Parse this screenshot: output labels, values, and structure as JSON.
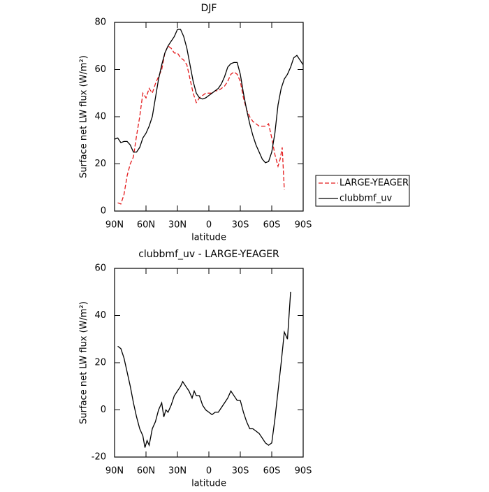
{
  "chart_data": [
    {
      "type": "line",
      "title": "DJF",
      "x_label": "latitude",
      "y_label": "Surface net LW flux (W/m²)",
      "xlim": [
        90,
        -90
      ],
      "ylim": [
        0,
        80
      ],
      "xticks": [
        {
          "value": 90,
          "label": "90N"
        },
        {
          "value": 60,
          "label": "60N"
        },
        {
          "value": 30,
          "label": "30N"
        },
        0,
        {
          "value": -30,
          "label": "30S"
        },
        {
          "value": -60,
          "label": "60S"
        },
        {
          "value": -90,
          "label": "90S"
        }
      ],
      "yticks": [
        0,
        20,
        40,
        60,
        80
      ],
      "legend": "right",
      "series": [
        {
          "name": "LARGE-YEAGER",
          "color": "#e41a1c",
          "style": "dashed",
          "x": [
            87,
            84,
            81,
            78,
            75,
            72,
            69,
            66,
            63,
            60,
            57,
            54,
            51,
            48,
            45,
            42,
            39,
            36,
            33,
            30,
            27,
            24,
            21,
            18,
            15,
            12,
            9,
            6,
            3,
            0,
            -3,
            -6,
            -9,
            -12,
            -15,
            -18,
            -21,
            -24,
            -27,
            -30,
            -33,
            -36,
            -39,
            -42,
            -45,
            -48,
            -51,
            -54,
            -57,
            -60,
            -63,
            -66,
            -68,
            -70,
            -72
          ],
          "values": [
            3.5,
            3,
            7,
            15,
            20,
            23,
            32,
            40,
            50,
            48,
            52,
            50,
            54,
            57,
            60,
            67,
            70,
            69,
            67,
            67,
            65,
            64,
            62,
            56,
            50,
            46,
            48,
            49,
            50,
            50,
            50,
            51,
            51,
            52,
            53,
            55,
            58,
            59,
            58,
            55,
            48,
            43,
            40,
            38,
            37,
            36,
            36,
            36,
            37,
            31,
            24,
            19,
            22,
            27,
            9
          ]
        },
        {
          "name": "clubbmf_uv",
          "color": "#000000",
          "style": "solid",
          "x": [
            90,
            87,
            84,
            81,
            78,
            75,
            72,
            69,
            66,
            63,
            60,
            57,
            54,
            51,
            48,
            45,
            42,
            39,
            36,
            33,
            30,
            27,
            24,
            21,
            18,
            15,
            12,
            9,
            6,
            3,
            0,
            -3,
            -6,
            -9,
            -12,
            -15,
            -18,
            -21,
            -24,
            -27,
            -30,
            -33,
            -36,
            -39,
            -42,
            -45,
            -48,
            -51,
            -54,
            -57,
            -60,
            -63,
            -66,
            -69,
            -72,
            -75,
            -78,
            -81,
            -84,
            -87,
            -90
          ],
          "values": [
            30.5,
            31,
            29,
            29.5,
            29.5,
            28,
            25,
            25,
            27,
            31,
            33,
            36,
            40,
            48,
            56,
            62,
            67,
            70,
            72,
            74,
            77,
            77,
            74,
            69,
            62,
            55,
            50,
            48,
            47.5,
            48,
            49,
            50,
            51,
            52,
            54,
            57,
            61,
            62.5,
            63,
            63,
            58,
            50,
            43,
            37,
            32,
            28,
            25,
            22,
            20.5,
            21,
            25,
            33,
            45,
            52,
            56,
            58,
            61,
            65,
            66,
            64,
            62
          ]
        }
      ]
    },
    {
      "type": "line",
      "title": "clubbmf_uv - LARGE-YEAGER",
      "x_label": "latitude",
      "y_label": "Surface net LW flux (W/m²)",
      "xlim": [
        90,
        -90
      ],
      "ylim": [
        -20,
        60
      ],
      "xticks": [
        {
          "value": 90,
          "label": "90N"
        },
        {
          "value": 60,
          "label": "60N"
        },
        {
          "value": 30,
          "label": "30N"
        },
        0,
        {
          "value": -30,
          "label": "30S"
        },
        {
          "value": -60,
          "label": "60S"
        },
        {
          "value": -90,
          "label": "90S"
        }
      ],
      "yticks": [
        -20,
        0,
        20,
        40,
        60
      ],
      "series": [
        {
          "color": "#000000",
          "style": "solid",
          "x": [
            87,
            84,
            81,
            78,
            75,
            72,
            69,
            66,
            63,
            61,
            59,
            57,
            54,
            51,
            48,
            45,
            43,
            41,
            39,
            36,
            33,
            30,
            27,
            25,
            22,
            19,
            16,
            14,
            12,
            9,
            6,
            3,
            0,
            -3,
            -6,
            -9,
            -12,
            -15,
            -18,
            -21,
            -24,
            -27,
            -30,
            -33,
            -36,
            -39,
            -42,
            -45,
            -48,
            -51,
            -54,
            -57,
            -60,
            -63,
            -66,
            -69,
            -72,
            -75,
            -78
          ],
          "values": [
            27,
            26,
            22,
            16,
            10,
            3,
            -3,
            -8,
            -11,
            -16,
            -13,
            -15,
            -8,
            -5,
            0,
            3,
            -3,
            0,
            -1,
            2,
            6,
            8,
            10,
            12,
            10,
            8,
            5,
            8,
            6,
            6,
            2,
            0,
            -1,
            -2,
            -1,
            -1,
            1,
            3,
            5,
            8,
            6,
            4,
            4,
            -1,
            -5,
            -8,
            -8,
            -9,
            -10,
            -12,
            -14,
            -15,
            -14,
            -4,
            8,
            20,
            33,
            30,
            50
          ]
        }
      ]
    }
  ]
}
